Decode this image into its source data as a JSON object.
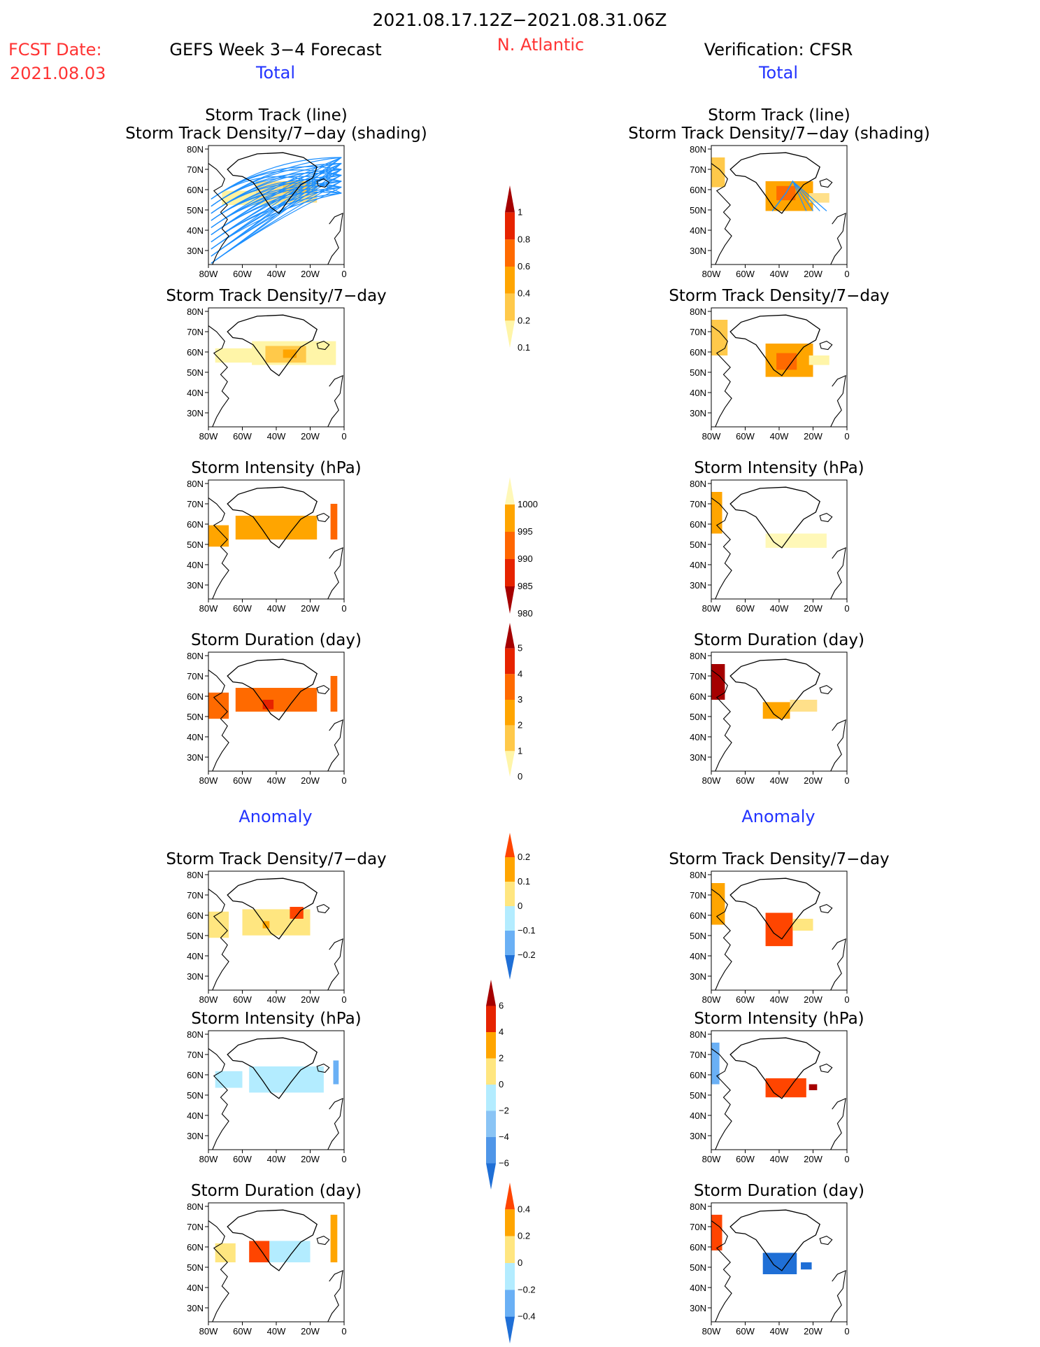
{
  "header": {
    "date_range": "2021.08.17.12Z−2021.08.31.06Z",
    "fcst_label": "FCST Date:",
    "fcst_date": "2021.08.03",
    "model": "GEFS Week 3−4 Forecast",
    "region": "N. Atlantic",
    "verification": "Verification: CFSR",
    "left_total": "Total",
    "right_total": "Total",
    "left_anomaly": "Anomaly",
    "right_anomaly": "Anomaly"
  },
  "colors": {
    "title": "#000000",
    "red_label": "#ff3333",
    "blue_label": "#2233ff",
    "track_line": "#1e90ff"
  },
  "chart_data": [
    {
      "type": "heatmap",
      "panel": "forecast-total-track",
      "title": [
        "Storm Track (line)",
        "Storm Track Density/7−day (shading)"
      ],
      "xlim": [
        -80,
        0
      ],
      "ylim": [
        25,
        85
      ],
      "x_ticks": [
        "80W",
        "60W",
        "40W",
        "20W",
        "0"
      ],
      "y_ticks": [
        "80N",
        "70N",
        "60N",
        "50N",
        "40N",
        "30N"
      ]
    },
    {
      "type": "heatmap",
      "panel": "forecast-total-density",
      "title": [
        "Storm Track Density/7−day"
      ],
      "x_ticks": [
        "80W",
        "60W",
        "40W",
        "20W",
        "0"
      ],
      "y_ticks": [
        "80N",
        "70N",
        "60N",
        "50N",
        "40N",
        "30N"
      ]
    },
    {
      "type": "heatmap",
      "panel": "forecast-total-intensity",
      "title": [
        "Storm Intensity (hPa)"
      ],
      "x_ticks": [
        "80W",
        "60W",
        "40W",
        "20W",
        "0"
      ],
      "y_ticks": [
        "80N",
        "70N",
        "60N",
        "50N",
        "40N",
        "30N"
      ]
    },
    {
      "type": "heatmap",
      "panel": "forecast-total-duration",
      "title": [
        "Storm Duration (day)"
      ],
      "x_ticks": [
        "80W",
        "60W",
        "40W",
        "20W",
        "0"
      ],
      "y_ticks": [
        "80N",
        "70N",
        "60N",
        "50N",
        "40N",
        "30N"
      ]
    },
    {
      "type": "heatmap",
      "panel": "forecast-anom-density",
      "title": [
        "Storm Track Density/7−day"
      ],
      "x_ticks": [
        "80W",
        "60W",
        "40W",
        "20W",
        "0"
      ],
      "y_ticks": [
        "80N",
        "70N",
        "60N",
        "50N",
        "40N",
        "30N"
      ]
    },
    {
      "type": "heatmap",
      "panel": "forecast-anom-intensity",
      "title": [
        "Storm Intensity (hPa)"
      ],
      "x_ticks": [
        "80W",
        "60W",
        "40W",
        "20W",
        "0"
      ],
      "y_ticks": [
        "80N",
        "70N",
        "60N",
        "50N",
        "40N",
        "30N"
      ]
    },
    {
      "type": "heatmap",
      "panel": "forecast-anom-duration",
      "title": [
        "Storm Duration (day)"
      ],
      "x_ticks": [
        "80W",
        "60W",
        "40W",
        "20W",
        "0"
      ],
      "y_ticks": [
        "80N",
        "70N",
        "60N",
        "50N",
        "40N",
        "30N"
      ]
    },
    {
      "type": "heatmap",
      "panel": "cfsr-total-track",
      "title": [
        "Storm Track (line)",
        "Storm Track Density/7−day (shading)"
      ],
      "x_ticks": [
        "80W",
        "60W",
        "40W",
        "20W",
        "0"
      ],
      "y_ticks": [
        "80N",
        "70N",
        "60N",
        "50N",
        "40N",
        "30N"
      ]
    },
    {
      "type": "heatmap",
      "panel": "cfsr-total-density",
      "title": [
        "Storm Track Density/7−day"
      ],
      "x_ticks": [
        "80W",
        "60W",
        "40W",
        "20W",
        "0"
      ],
      "y_ticks": [
        "80N",
        "70N",
        "60N",
        "50N",
        "40N",
        "30N"
      ]
    },
    {
      "type": "heatmap",
      "panel": "cfsr-total-intensity",
      "title": [
        "Storm Intensity (hPa)"
      ],
      "x_ticks": [
        "80W",
        "60W",
        "40W",
        "20W",
        "0"
      ],
      "y_ticks": [
        "80N",
        "70N",
        "60N",
        "50N",
        "40N",
        "30N"
      ]
    },
    {
      "type": "heatmap",
      "panel": "cfsr-total-duration",
      "title": [
        "Storm Duration (day)"
      ],
      "x_ticks": [
        "80W",
        "60W",
        "40W",
        "20W",
        "0"
      ],
      "y_ticks": [
        "80N",
        "70N",
        "60N",
        "50N",
        "40N",
        "30N"
      ]
    },
    {
      "type": "heatmap",
      "panel": "cfsr-anom-density",
      "title": [
        "Storm Track Density/7−day"
      ],
      "x_ticks": [
        "80W",
        "60W",
        "40W",
        "20W",
        "0"
      ],
      "y_ticks": [
        "80N",
        "70N",
        "60N",
        "50N",
        "40N",
        "30N"
      ]
    },
    {
      "type": "heatmap",
      "panel": "cfsr-anom-intensity",
      "title": [
        "Storm Intensity (hPa)"
      ],
      "x_ticks": [
        "80W",
        "60W",
        "40W",
        "20W",
        "0"
      ],
      "y_ticks": [
        "80N",
        "70N",
        "60N",
        "50N",
        "40N",
        "30N"
      ]
    },
    {
      "type": "heatmap",
      "panel": "cfsr-anom-duration",
      "title": [
        "Storm Duration (day)"
      ],
      "x_ticks": [
        "80W",
        "60W",
        "40W",
        "20W",
        "0"
      ],
      "y_ticks": [
        "80N",
        "70N",
        "60N",
        "50N",
        "40N",
        "30N"
      ]
    }
  ],
  "colorbars": [
    {
      "name": "density",
      "labels": [
        "1",
        "0.8",
        "0.6",
        "0.4",
        "0.2",
        "0.1"
      ],
      "colors": [
        "#a50000",
        "#e62300",
        "#ff6a00",
        "#ffa500",
        "#ffc94a",
        "#fff5a8"
      ]
    },
    {
      "name": "intensity",
      "labels": [
        "1000",
        "995",
        "990",
        "985",
        "980"
      ],
      "colors": [
        "#fff8b8",
        "#ffa500",
        "#ff6600",
        "#e62300",
        "#a50000"
      ]
    },
    {
      "name": "duration",
      "labels": [
        "5",
        "4",
        "3",
        "2",
        "1",
        "0"
      ],
      "colors": [
        "#a50000",
        "#e62300",
        "#ff6a00",
        "#ffa500",
        "#ffc94a",
        "#fff5a8"
      ]
    },
    {
      "name": "density-anom",
      "labels": [
        "0.2",
        "0.1",
        "0",
        "−0.1",
        "−0.2"
      ],
      "colors": [
        "#ff4500",
        "#ffa500",
        "#ffe680",
        "#b3ecff",
        "#6ab0f5",
        "#1f6fd6"
      ]
    },
    {
      "name": "intensity-anom",
      "labels": [
        "6",
        "4",
        "2",
        "0",
        "−2",
        "−4",
        "−6"
      ],
      "colors": [
        "#a50000",
        "#e62300",
        "#ffa500",
        "#ffe680",
        "#b3ecff",
        "#8ac4f5",
        "#4f96e8",
        "#1f6fd6"
      ]
    },
    {
      "name": "duration-anom",
      "labels": [
        "0.4",
        "0.2",
        "0",
        "−0.2",
        "−0.4"
      ],
      "colors": [
        "#ff4500",
        "#ffa500",
        "#ffe680",
        "#b3ecff",
        "#6ab0f5",
        "#1f6fd6"
      ]
    }
  ]
}
